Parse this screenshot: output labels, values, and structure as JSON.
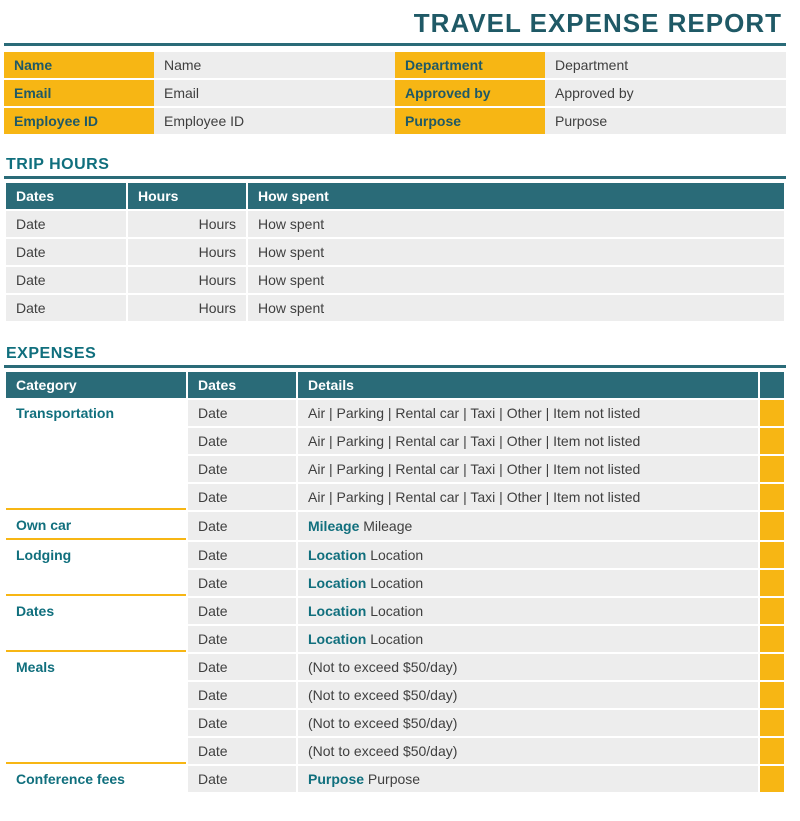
{
  "colors": {
    "teal": "#2a6b78",
    "tealDark": "#1f5966",
    "accent": "#106f7d",
    "yellow": "#f7b614",
    "grey": "#ededed",
    "white": "#ffffff",
    "text": "#3f3f3f"
  },
  "title": "TRAVEL EXPENSE REPORT",
  "info": {
    "left": [
      {
        "label": "Name",
        "value": "Name"
      },
      {
        "label": "Email",
        "value": "Email"
      },
      {
        "label": "Employee ID",
        "value": "Employee ID"
      }
    ],
    "right": [
      {
        "label": "Department",
        "value": "Department"
      },
      {
        "label": "Approved by",
        "value": "Approved by"
      },
      {
        "label": "Purpose",
        "value": "Purpose"
      }
    ]
  },
  "tripHours": {
    "title": "TRIP HOURS",
    "cols": [
      "Dates",
      "Hours",
      "How spent"
    ],
    "rows": [
      [
        "Date",
        "Hours",
        "How spent"
      ],
      [
        "Date",
        "Hours",
        "How spent"
      ],
      [
        "Date",
        "Hours",
        "How spent"
      ],
      [
        "Date",
        "Hours",
        "How spent"
      ]
    ]
  },
  "expenses": {
    "title": "EXPENSES",
    "cols": [
      "Category",
      "Dates",
      "Details",
      ""
    ],
    "rows": [
      {
        "cat": "Transportation",
        "date": "Date",
        "detail": "Air | Parking | Rental car | Taxi | Other | Item not listed",
        "sep": false
      },
      {
        "cat": "",
        "date": "Date",
        "detail": "Air | Parking | Rental car | Taxi | Other | Item not listed",
        "sep": false
      },
      {
        "cat": "",
        "date": "Date",
        "detail": "Air | Parking | Rental car | Taxi | Other | Item not listed",
        "sep": false
      },
      {
        "cat": "",
        "date": "Date",
        "detail": "Air | Parking | Rental car | Taxi | Other | Item not listed",
        "sep": true
      },
      {
        "cat": "Own car",
        "date": "Date",
        "detailLabel": "Mileage",
        "detailValue": "Mileage",
        "sep": true
      },
      {
        "cat": "Lodging",
        "date": "Date",
        "detailLabel": "Location",
        "detailValue": "Location",
        "sep": false
      },
      {
        "cat": "",
        "date": "Date",
        "detailLabel": "Location",
        "detailValue": "Location",
        "sep": true
      },
      {
        "cat": "Dates",
        "date": "Date",
        "detailLabel": "Location",
        "detailValue": "Location",
        "sep": false
      },
      {
        "cat": "",
        "date": "Date",
        "detailLabel": "Location",
        "detailValue": "Location",
        "sep": true
      },
      {
        "cat": "Meals",
        "date": "Date",
        "detail": "(Not to exceed $50/day)",
        "sep": false
      },
      {
        "cat": "",
        "date": "Date",
        "detail": "(Not to exceed $50/day)",
        "sep": false
      },
      {
        "cat": "",
        "date": "Date",
        "detail": "(Not to exceed $50/day)",
        "sep": false
      },
      {
        "cat": "",
        "date": "Date",
        "detail": "(Not to exceed $50/day)",
        "sep": true
      },
      {
        "cat": "Conference fees",
        "date": "Date",
        "detailLabel": "Purpose",
        "detailValue": "Purpose",
        "sep": false
      }
    ]
  }
}
